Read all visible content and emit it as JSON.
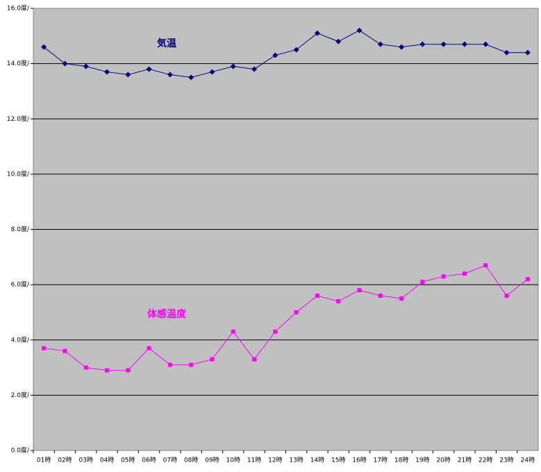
{
  "chart_data": {
    "type": "line",
    "categories": [
      "01時",
      "02時",
      "03時",
      "04時",
      "05時",
      "06時",
      "07時",
      "08時",
      "09時",
      "10時",
      "11時",
      "12時",
      "13時",
      "14時",
      "15時",
      "16時",
      "17時",
      "18時",
      "19時",
      "20時",
      "21時",
      "22時",
      "23時",
      "24時"
    ],
    "series": [
      {
        "name": "気温",
        "color": "#000080",
        "marker": "diamond",
        "values": [
          14.6,
          14.0,
          13.9,
          13.7,
          13.6,
          13.8,
          13.6,
          13.5,
          13.7,
          13.9,
          13.8,
          14.3,
          14.5,
          15.1,
          14.8,
          15.2,
          14.7,
          14.6,
          14.7,
          14.7,
          14.7,
          14.7,
          14.4,
          14.4
        ]
      },
      {
        "name": "体感温度",
        "color": "#ff00ff",
        "marker": "square",
        "values": [
          3.7,
          3.6,
          3.0,
          2.9,
          2.9,
          3.7,
          3.1,
          3.1,
          3.3,
          4.3,
          3.3,
          4.3,
          5.0,
          5.6,
          5.4,
          5.8,
          5.6,
          5.5,
          6.1,
          6.3,
          6.4,
          6.7,
          5.6,
          6.2
        ]
      }
    ],
    "ylim": [
      0,
      16
    ],
    "yticks": [
      {
        "value": 0,
        "label": "0.0度/"
      },
      {
        "value": 2,
        "label": "2.0度/"
      },
      {
        "value": 4,
        "label": "4.0度/"
      },
      {
        "value": 6,
        "label": "6.0度/"
      },
      {
        "value": 8,
        "label": "8.0度/"
      },
      {
        "value": 10,
        "label": "10.0度/"
      },
      {
        "value": 12,
        "label": "12.0度/"
      },
      {
        "value": 14,
        "label": "14.0度/"
      },
      {
        "value": 16,
        "label": "16.0度/"
      }
    ],
    "grid": true,
    "background": "#c0c0c0"
  }
}
